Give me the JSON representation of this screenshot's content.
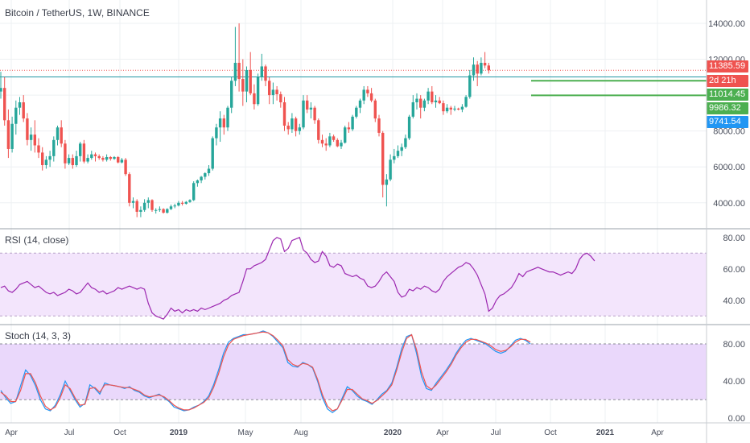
{
  "chart_data": [
    {
      "type": "candlestick",
      "title": "Bitcoin / TetherUS, 1W, BINANCE",
      "x_ticks": [
        "Apr",
        "Jul",
        "Oct",
        "2019",
        "May",
        "Aug",
        "2020",
        "Apr",
        "Jul",
        "Oct",
        "2021",
        "Apr"
      ],
      "y_ticks": [
        "4000.00",
        "6000.00",
        "8000.00",
        "10000.00",
        "12000.00",
        "14000.00"
      ],
      "ylim": [
        2600,
        15300
      ],
      "candles": [
        [
          10200,
          11300,
          9800,
          10400
        ],
        [
          10400,
          11000,
          8300,
          8600
        ],
        [
          8600,
          9200,
          6500,
          7000
        ],
        [
          7000,
          8800,
          6800,
          8400
        ],
        [
          8400,
          9700,
          7800,
          9300
        ],
        [
          9300,
          9900,
          8900,
          9600
        ],
        [
          9600,
          10000,
          8500,
          8700
        ],
        [
          8700,
          9000,
          7200,
          7500
        ],
        [
          7500,
          8200,
          6900,
          7800
        ],
        [
          7800,
          8600,
          6800,
          7200
        ],
        [
          7200,
          7600,
          6500,
          6800
        ],
        [
          6800,
          7100,
          5800,
          6100
        ],
        [
          6100,
          6600,
          5900,
          6400
        ],
        [
          6400,
          6900,
          6000,
          6600
        ],
        [
          6600,
          7700,
          6300,
          7500
        ],
        [
          7500,
          8300,
          7200,
          8200
        ],
        [
          8200,
          8600,
          7100,
          7300
        ],
        [
          7300,
          7500,
          5900,
          6200
        ],
        [
          6200,
          6700,
          6100,
          6500
        ],
        [
          6500,
          6700,
          5900,
          6100
        ],
        [
          6100,
          6900,
          6000,
          6600
        ],
        [
          6600,
          7400,
          6300,
          7300
        ],
        [
          7300,
          7500,
          6200,
          6300
        ],
        [
          6300,
          6700,
          6200,
          6500
        ],
        [
          6500,
          6900,
          6400,
          6700
        ],
        [
          6700,
          6800,
          6300,
          6600
        ],
        [
          6600,
          6700,
          6400,
          6500
        ],
        [
          6500,
          6600,
          6300,
          6400
        ],
        [
          6400,
          6700,
          6300,
          6550
        ],
        [
          6550,
          6600,
          6350,
          6450
        ],
        [
          6450,
          6600,
          6400,
          6550
        ],
        [
          6550,
          6600,
          6200,
          6250
        ],
        [
          6250,
          6500,
          6200,
          6400
        ],
        [
          6400,
          6500,
          5500,
          5600
        ],
        [
          5600,
          5700,
          3800,
          4000
        ],
        [
          4000,
          4300,
          3700,
          4100
        ],
        [
          4100,
          4200,
          3200,
          3500
        ],
        [
          3500,
          3800,
          3200,
          3600
        ],
        [
          3600,
          4200,
          3500,
          4000
        ],
        [
          4000,
          4300,
          3700,
          4150
        ],
        [
          4150,
          4200,
          3500,
          3600
        ],
        [
          3600,
          3700,
          3400,
          3600
        ],
        [
          3600,
          3800,
          3500,
          3650
        ],
        [
          3650,
          3700,
          3400,
          3450
        ],
        [
          3450,
          3700,
          3400,
          3650
        ],
        [
          3650,
          3900,
          3600,
          3800
        ],
        [
          3800,
          3950,
          3700,
          3850
        ],
        [
          3850,
          4100,
          3800,
          4000
        ],
        [
          4000,
          4100,
          3850,
          3950
        ],
        [
          3950,
          4100,
          3900,
          4050
        ],
        [
          4050,
          4200,
          4000,
          4150
        ],
        [
          4150,
          5200,
          4100,
          5100
        ],
        [
          5100,
          5300,
          4900,
          5250
        ],
        [
          5250,
          5500,
          5100,
          5450
        ],
        [
          5450,
          5700,
          5300,
          5650
        ],
        [
          5650,
          6100,
          5500,
          5900
        ],
        [
          5900,
          7700,
          5800,
          7600
        ],
        [
          7600,
          8400,
          7200,
          8200
        ],
        [
          8200,
          9100,
          7400,
          8700
        ],
        [
          8700,
          8900,
          7800,
          8200
        ],
        [
          8200,
          9400,
          8000,
          9300
        ],
        [
          9300,
          11000,
          9000,
          10800
        ],
        [
          10800,
          13800,
          10500,
          11800
        ],
        [
          11800,
          14000,
          10200,
          10900
        ],
        [
          10900,
          12000,
          9400,
          10200
        ],
        [
          10200,
          11600,
          9600,
          11400
        ],
        [
          11400,
          12400,
          10000,
          10100
        ],
        [
          10100,
          10600,
          9200,
          9500
        ],
        [
          9500,
          11200,
          9400,
          11000
        ],
        [
          11000,
          12300,
          10800,
          11600
        ],
        [
          11600,
          11700,
          10500,
          10800
        ],
        [
          10800,
          11000,
          9500,
          10000
        ],
        [
          10000,
          10700,
          9500,
          10300
        ],
        [
          10300,
          10500,
          9700,
          10050
        ],
        [
          10050,
          10200,
          9300,
          9600
        ],
        [
          9600,
          9900,
          8000,
          8300
        ],
        [
          8300,
          8500,
          7800,
          8100
        ],
        [
          8100,
          9000,
          7900,
          8700
        ],
        [
          8700,
          8800,
          7700,
          8000
        ],
        [
          8000,
          8400,
          7800,
          8200
        ],
        [
          8200,
          10000,
          8100,
          9700
        ],
        [
          9700,
          10000,
          9000,
          9200
        ],
        [
          9200,
          9600,
          8700,
          9300
        ],
        [
          9300,
          9400,
          8400,
          8600
        ],
        [
          8600,
          8700,
          7300,
          7500
        ],
        [
          7500,
          7800,
          7100,
          7300
        ],
        [
          7300,
          7600,
          6900,
          7200
        ],
        [
          7200,
          7900,
          7100,
          7700
        ],
        [
          7700,
          7800,
          7400,
          7500
        ],
        [
          7500,
          7600,
          7100,
          7150
        ],
        [
          7150,
          7500,
          7000,
          7350
        ],
        [
          7350,
          8300,
          7300,
          8200
        ],
        [
          8200,
          8500,
          7900,
          8100
        ],
        [
          8100,
          8900,
          8000,
          8800
        ],
        [
          8800,
          9400,
          8700,
          9300
        ],
        [
          9300,
          9800,
          9000,
          9700
        ],
        [
          9700,
          10500,
          9500,
          10300
        ],
        [
          10300,
          10500,
          9900,
          10100
        ],
        [
          10100,
          10400,
          9600,
          9700
        ],
        [
          9700,
          9800,
          8500,
          8700
        ],
        [
          8700,
          8900,
          7700,
          7900
        ],
        [
          7900,
          8000,
          4300,
          5000
        ],
        [
          5000,
          5600,
          3800,
          5300
        ],
        [
          5300,
          6700,
          5200,
          6400
        ],
        [
          6400,
          7000,
          6200,
          6600
        ],
        [
          6600,
          7200,
          6500,
          6900
        ],
        [
          6900,
          7300,
          6600,
          7100
        ],
        [
          7100,
          7800,
          7000,
          7600
        ],
        [
          7600,
          8900,
          7500,
          8800
        ],
        [
          8800,
          10000,
          8700,
          9600
        ],
        [
          9600,
          10100,
          9200,
          9800
        ],
        [
          9800,
          10000,
          8700,
          9300
        ],
        [
          9300,
          9800,
          9100,
          9700
        ],
        [
          9700,
          10400,
          9500,
          10200
        ],
        [
          10200,
          10500,
          9500,
          9600
        ],
        [
          9600,
          10000,
          9300,
          9700
        ],
        [
          9700,
          9900,
          9500,
          9550
        ],
        [
          9550,
          9700,
          8900,
          9100
        ],
        [
          9100,
          9500,
          9000,
          9300
        ],
        [
          9300,
          9400,
          8900,
          9200
        ],
        [
          9200,
          9400,
          9100,
          9250
        ],
        [
          9250,
          9300,
          9150,
          9200
        ],
        [
          9200,
          9500,
          9050,
          9350
        ],
        [
          9350,
          10000,
          9300,
          9900
        ],
        [
          9900,
          11400,
          9800,
          11100
        ],
        [
          11100,
          12100,
          10800,
          11700
        ],
        [
          11700,
          11900,
          10500,
          11200
        ],
        [
          11200,
          12100,
          11100,
          11800
        ],
        [
          11800,
          12400,
          11500,
          11650
        ],
        [
          11650,
          11800,
          11200,
          11385.59
        ]
      ],
      "horizontal_levels": [
        {
          "value": 11385.59,
          "label": "11385.59",
          "color": "#ef5350",
          "style": "dotted"
        },
        {
          "value": 11014.45,
          "label": "11014.45",
          "color": "#2196a3",
          "style": "solid"
        }
      ],
      "support_segments": [
        {
          "value": 10800,
          "color": "#4caf50"
        },
        {
          "value": 9986.32,
          "color": "#4caf50"
        }
      ],
      "price_labels": [
        {
          "value": 11385.59,
          "text": "11385.59",
          "color": "#ef5350"
        },
        {
          "value": 10380,
          "text": "2d 21h",
          "color": "#ef5350"
        },
        {
          "value": 11014.45,
          "text": "11014.45",
          "color": "#4caf50"
        },
        {
          "value": 9986.32,
          "text": "9986.32",
          "color": "#4caf50"
        },
        {
          "value": 9741.54,
          "text": "9741.54",
          "color": "#2196f3"
        }
      ]
    },
    {
      "type": "line",
      "title": "RSI (14, close)",
      "ylim": [
        25,
        85
      ],
      "y_ticks": [
        "40.00",
        "60.00",
        "80.00"
      ],
      "band": [
        30,
        70
      ],
      "series": [
        {
          "color": "#9c27b0",
          "values": [
            48,
            49,
            46,
            45,
            47,
            50,
            51,
            52,
            50,
            48,
            49,
            47,
            45,
            44,
            45,
            43,
            44,
            45,
            47,
            46,
            44,
            45,
            48,
            51,
            48,
            47,
            45,
            46,
            44,
            45,
            46,
            48,
            47,
            48,
            49,
            48,
            47,
            48,
            47,
            38,
            32,
            30,
            29,
            28,
            31,
            35,
            33,
            34,
            32,
            34,
            33,
            34,
            33,
            35,
            34,
            35,
            36,
            37,
            38,
            40,
            41,
            43,
            44,
            45,
            52,
            60,
            60,
            62,
            63,
            64,
            66,
            72,
            78,
            80,
            79,
            71,
            73,
            78,
            79,
            80,
            72,
            70,
            66,
            64,
            65,
            71,
            68,
            62,
            61,
            63,
            62,
            57,
            56,
            55,
            56,
            54,
            53,
            49,
            48,
            49,
            52,
            56,
            58,
            55,
            52,
            45,
            42,
            43,
            47,
            46,
            48,
            47,
            49,
            48,
            46,
            45,
            47,
            52,
            55,
            57,
            59,
            61,
            62,
            64,
            63,
            60,
            56,
            50,
            44,
            33,
            35,
            40,
            43,
            44,
            46,
            48,
            52,
            57,
            55,
            58,
            59,
            60,
            61,
            60,
            59,
            58,
            58,
            57,
            56,
            57,
            58,
            57,
            60,
            66,
            69,
            70,
            68,
            65
          ]
        }
      ]
    },
    {
      "type": "line",
      "title": "Stoch (14, 3, 3)",
      "ylim": [
        -5,
        100
      ],
      "y_ticks": [
        "0.00",
        "40.00",
        "80.00"
      ],
      "band": [
        20,
        80
      ],
      "series": [
        {
          "color": "#2196f3",
          "values": [
            30,
            22,
            16,
            18,
            35,
            52,
            46,
            35,
            20,
            10,
            8,
            14,
            25,
            40,
            30,
            20,
            12,
            16,
            36,
            32,
            26,
            38,
            36,
            35,
            34,
            32,
            34,
            30,
            28,
            24,
            22,
            24,
            26,
            22,
            18,
            12,
            10,
            8,
            9,
            12,
            14,
            18,
            24,
            36,
            52,
            70,
            82,
            86,
            88,
            90,
            90,
            91,
            92,
            94,
            92,
            88,
            82,
            76,
            60,
            56,
            55,
            60,
            58,
            54,
            40,
            22,
            10,
            6,
            10,
            22,
            34,
            30,
            24,
            20,
            18,
            15,
            20,
            26,
            30,
            38,
            55,
            75,
            88,
            90,
            70,
            45,
            32,
            30,
            38,
            45,
            52,
            60,
            70,
            78,
            84,
            86,
            84,
            82,
            80,
            76,
            72,
            70,
            72,
            78,
            84,
            86,
            84,
            80
          ]
        },
        {
          "color": "#ef5350",
          "values": [
            28,
            24,
            18,
            18,
            30,
            48,
            48,
            38,
            24,
            13,
            9,
            12,
            22,
            36,
            32,
            22,
            14,
            15,
            32,
            33,
            28,
            36,
            36,
            35,
            34,
            33,
            33,
            31,
            29,
            25,
            23,
            24,
            25,
            23,
            19,
            14,
            11,
            9,
            9,
            11,
            14,
            17,
            22,
            33,
            48,
            66,
            79,
            85,
            87,
            89,
            90,
            91,
            92,
            93,
            92,
            89,
            84,
            78,
            63,
            58,
            56,
            59,
            58,
            55,
            42,
            25,
            13,
            8,
            10,
            20,
            31,
            31,
            26,
            21,
            19,
            16,
            19,
            24,
            29,
            36,
            52,
            71,
            86,
            90,
            74,
            50,
            35,
            31,
            36,
            43,
            50,
            58,
            68,
            76,
            82,
            85,
            85,
            83,
            81,
            78,
            74,
            72,
            73,
            77,
            82,
            85,
            85,
            82
          ]
        }
      ]
    }
  ]
}
